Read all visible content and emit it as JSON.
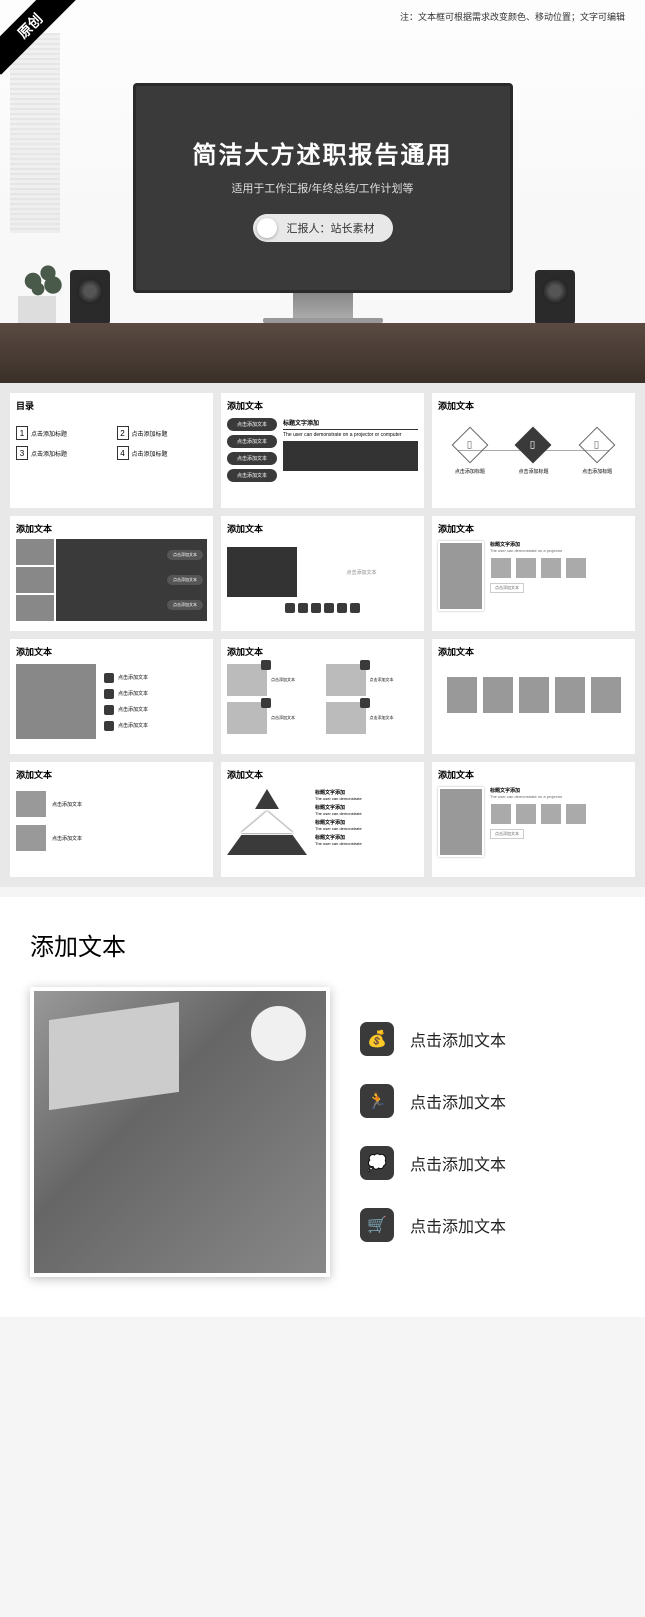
{
  "badge": "原创",
  "header_note": "注：文本框可根据需求改变颜色、移动位置；文字可编辑",
  "hero": {
    "title": "简洁大方述职报告通用",
    "subtitle": "适用于工作汇报/年终总结/工作计划等",
    "reporter": "汇报人：站长素材"
  },
  "colors": {
    "dark": "#3a3a3a",
    "bg": "#f5f5f5",
    "white": "#ffffff"
  },
  "thumbs": {
    "t1": {
      "title": "目录",
      "items": [
        "点击添加标题",
        "点击添加标题",
        "点击添加标题",
        "点击添加标题"
      ]
    },
    "t2": {
      "title": "添加文本",
      "bars": [
        "点击添加文本",
        "点击添加文本",
        "点击添加文本",
        "点击添加文本"
      ],
      "right_title": "标题文字添加",
      "right_desc": "The user can demonstrate on a projector or computer"
    },
    "t3": {
      "title": "添加文本",
      "labels": [
        "点击添加标题",
        "点击添加标题",
        "点击添加标题"
      ]
    },
    "t4": {
      "title": "添加文本",
      "btns": [
        "点击添加文本",
        "点击添加文本",
        "点击添加文本"
      ]
    },
    "t5": {
      "title": "添加文本",
      "placeholder": "点击添加文本"
    },
    "t6": {
      "title": "添加文本",
      "right_title": "标题文字添加",
      "right_desc": "The user can demonstrate on a projector",
      "btn": "点击添加文本"
    },
    "t7": {
      "title": "添加文本",
      "items": [
        "点击添加文本",
        "点击添加文本",
        "点击添加文本",
        "点击添加文本"
      ]
    },
    "t8": {
      "title": "添加文本",
      "items": [
        "点击添加文本",
        "点击添加文本",
        "点击添加文本",
        "点击添加文本"
      ]
    },
    "t9": {
      "title": "添加文本"
    },
    "t10": {
      "title": "添加文本",
      "items": [
        "点击添加文本",
        "点击添加文本"
      ]
    },
    "t11": {
      "title": "添加文本",
      "item_title": "标题文字添加",
      "item_desc": "The user can demonstrate"
    },
    "t12": {
      "title": "添加文本",
      "right_title": "标题文字添加",
      "right_desc": "The user can demonstrate on a projector",
      "btn": "点击添加文本"
    }
  },
  "detail": {
    "title": "添加文本",
    "items": [
      "点击添加文本",
      "点击添加文本",
      "点击添加文本",
      "点击添加文本"
    ],
    "icons": [
      "💰",
      "🏃",
      "💭",
      "🛒"
    ]
  }
}
